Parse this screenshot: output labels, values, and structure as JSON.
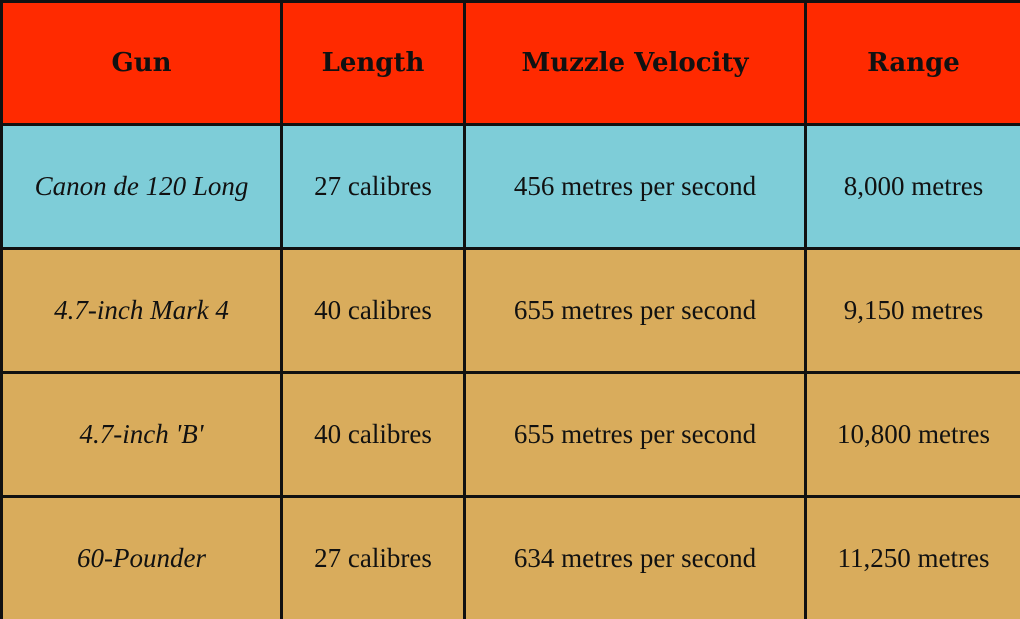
{
  "table": {
    "headers": [
      "Gun",
      "Length",
      "Muzzle Velocity",
      "Range"
    ],
    "rows": [
      {
        "gun": "Canon de 120 Long",
        "length": "27 calibres",
        "velocity": "456 metres per second",
        "range": "8,000 metres"
      },
      {
        "gun": "4.7-inch Mark 4",
        "length": "40 calibres",
        "velocity": "655 metres per second",
        "range": "9,150 metres"
      },
      {
        "gun": "4.7-inch 'B'",
        "length": "40 calibres",
        "velocity": "655 metres per second",
        "range": "10,800 metres"
      },
      {
        "gun": "60-Pounder",
        "length": "27 calibres",
        "velocity": "634 metres per second",
        "range": "11,250 metres"
      }
    ]
  },
  "colors": {
    "header_bg": "#ff2a00",
    "first_row_bg": "#7ecdd8",
    "other_rows_bg": "#d9ac5c",
    "border": "#111111"
  }
}
